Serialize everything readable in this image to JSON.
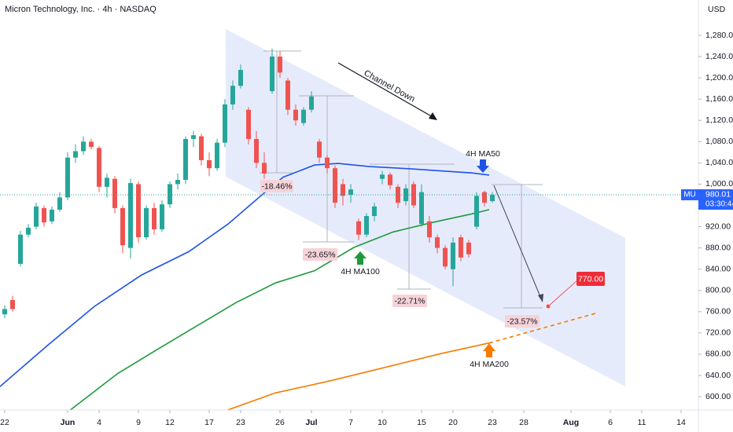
{
  "chart_data": {
    "type": "candlestick",
    "title": "Micron Technology, Inc. · 4h · NASDAQ",
    "currency": "USD",
    "symbol": "MU",
    "countdown": "03:30:44",
    "up_color": "#26a69a",
    "down_color": "#ef5350",
    "x": [
      0,
      1,
      2,
      3,
      4,
      5,
      6,
      7,
      8,
      9,
      10,
      11,
      12,
      13,
      14,
      15,
      16,
      17,
      18,
      19,
      20,
      21,
      22,
      23,
      24,
      25,
      26,
      27,
      28,
      29,
      30,
      31,
      32,
      33,
      34,
      35,
      36,
      37,
      38,
      39,
      40,
      41,
      42,
      43,
      44,
      45,
      46,
      47,
      48,
      49,
      50,
      51,
      52,
      53,
      54,
      55,
      56,
      57,
      58,
      59,
      60,
      61,
      62
    ],
    "open": [
      755,
      782,
      850,
      905,
      920,
      955,
      930,
      952,
      975,
      1050,
      1062,
      1080,
      1068,
      995,
      1010,
      955,
      880,
      1000,
      900,
      955,
      915,
      962,
      1000,
      1008,
      1085,
      1090,
      1045,
      1030,
      1078,
      1150,
      1185,
      1140,
      1085,
      1040,
      1175,
      1240,
      1195,
      1140,
      1115,
      1140,
      1080,
      1050,
      1030,
      1000,
      980,
      930,
      905,
      940,
      1010,
      1018,
      995,
      968,
      1000,
      925,
      930,
      900,
      880,
      840,
      900,
      890,
      920,
      985,
      968
    ],
    "high": [
      772,
      790,
      912,
      925,
      965,
      960,
      958,
      985,
      1060,
      1075,
      1090,
      1085,
      1072,
      1020,
      1015,
      960,
      1010,
      1005,
      960,
      965,
      970,
      1005,
      1020,
      1090,
      1100,
      1095,
      1060,
      1085,
      1160,
      1195,
      1225,
      1145,
      1100,
      1060,
      1255,
      1250,
      1200,
      1150,
      1145,
      1175,
      1085,
      1055,
      1035,
      1010,
      1000,
      935,
      945,
      965,
      1025,
      1022,
      1000,
      1000,
      1005,
      1000,
      940,
      905,
      885,
      900,
      905,
      895,
      985,
      988,
      985
    ],
    "low": [
      748,
      760,
      845,
      900,
      915,
      920,
      925,
      948,
      970,
      1040,
      1055,
      1065,
      985,
      975,
      945,
      870,
      860,
      890,
      895,
      905,
      910,
      955,
      990,
      1000,
      1070,
      1035,
      1015,
      1025,
      1070,
      1140,
      1180,
      1075,
      1030,
      1010,
      1170,
      1200,
      1130,
      1110,
      1110,
      1135,
      1040,
      1020,
      955,
      960,
      965,
      895,
      900,
      930,
      1000,
      990,
      955,
      960,
      955,
      920,
      890,
      870,
      840,
      808,
      855,
      862,
      915,
      958,
      965
    ],
    "close": [
      765,
      765,
      905,
      918,
      958,
      928,
      952,
      975,
      1050,
      1062,
      1080,
      1070,
      995,
      1012,
      955,
      885,
      1002,
      900,
      955,
      915,
      962,
      1000,
      1008,
      1085,
      1092,
      1045,
      1030,
      1078,
      1150,
      1185,
      1215,
      1085,
      1040,
      1020,
      1240,
      1210,
      1140,
      1120,
      1140,
      1165,
      1050,
      1030,
      965,
      978,
      990,
      905,
      940,
      958,
      1018,
      998,
      965,
      992,
      960,
      985,
      900,
      880,
      845,
      890,
      862,
      868,
      978,
      965,
      980.01
    ],
    "xlim": [
      -0.6,
      88.2
    ],
    "xticks": [
      {
        "value": 0,
        "label": "22"
      },
      {
        "value": 8,
        "label": "Jun"
      },
      {
        "value": 12,
        "label": "4"
      },
      {
        "value": 17,
        "label": "9"
      },
      {
        "value": 21,
        "label": "12"
      },
      {
        "value": 26,
        "label": "17"
      },
      {
        "value": 30,
        "label": "23"
      },
      {
        "value": 35,
        "label": "26"
      },
      {
        "value": 39,
        "label": "Jul"
      },
      {
        "value": 44,
        "label": "7"
      },
      {
        "value": 48,
        "label": "10"
      },
      {
        "value": 53,
        "label": "15"
      },
      {
        "value": 57,
        "label": "20"
      },
      {
        "value": 62,
        "label": "23"
      },
      {
        "value": 66,
        "label": "28"
      },
      {
        "value": 72,
        "label": "Aug"
      },
      {
        "value": 77,
        "label": "6"
      },
      {
        "value": 81,
        "label": "11"
      },
      {
        "value": 86,
        "label": "14"
      }
    ],
    "ylim": [
      575,
      1346.5
    ],
    "yticks": [
      {
        "value": 600,
        "label": "600.00"
      },
      {
        "value": 640,
        "label": "640.00"
      },
      {
        "value": 680,
        "label": "680.00"
      },
      {
        "value": 720,
        "label": "720.00"
      },
      {
        "value": 760,
        "label": "760.00"
      },
      {
        "value": 800,
        "label": "800.00"
      },
      {
        "value": 840,
        "label": "840.00"
      },
      {
        "value": 880,
        "label": "880.00"
      },
      {
        "value": 920,
        "label": "920.00"
      },
      {
        "value": 960,
        "label": "960.00"
      },
      {
        "value": 1000,
        "label": "1,000.00"
      },
      {
        "value": 1040,
        "label": "1,040.00"
      },
      {
        "value": 1080,
        "label": "1,080.00"
      },
      {
        "value": 1120,
        "label": "1,120.00"
      },
      {
        "value": 1160,
        "label": "1,160.00"
      },
      {
        "value": 1200,
        "label": "1,200.00"
      },
      {
        "value": 1240,
        "label": "1,240.00"
      },
      {
        "value": 1280,
        "label": "1,280.00"
      }
    ],
    "grid": false,
    "series": [
      {
        "name": "4H MA50",
        "color": "#1e53e5",
        "x": [
          -0.6,
          5.4,
          11.4,
          17.4,
          23.4,
          28.4,
          32.4,
          35.4,
          39.4,
          42.4,
          46.4,
          51.4,
          56.4,
          59.4,
          61.6
        ],
        "values": [
          619,
          696,
          770,
          829,
          873,
          925,
          976,
          1013,
          1036,
          1039,
          1033,
          1029,
          1024,
          1021,
          1017
        ]
      },
      {
        "name": "4H MA100",
        "color": "#1f9a3a",
        "x": [
          7.9,
          14.4,
          19.4,
          24.4,
          29.4,
          34.4,
          39.4,
          44.4,
          49.4,
          54.4,
          59.4,
          61.6
        ],
        "values": [
          570,
          644,
          689,
          733,
          777,
          814,
          837,
          881,
          910,
          928,
          944,
          952
        ]
      },
      {
        "name": "4H MA200",
        "color": "#f57c00",
        "x": [
          27.4,
          34.4,
          41.4,
          49.4,
          55.4,
          61.6
        ],
        "values": [
          570,
          607,
          630,
          659,
          681,
          701
        ]
      },
      {
        "color": "#f57c00",
        "dashed": true,
        "x": [
          61.6,
          75.4
        ],
        "values": [
          701,
          758
        ]
      }
    ],
    "target": {
      "x": 69.1,
      "value": 770,
      "value_label": "770.00"
    },
    "channel_label": "Channel Down",
    "measurements": [
      "-18.46%",
      "-23.65%",
      "-22.71%",
      "-23.57%"
    ]
  }
}
